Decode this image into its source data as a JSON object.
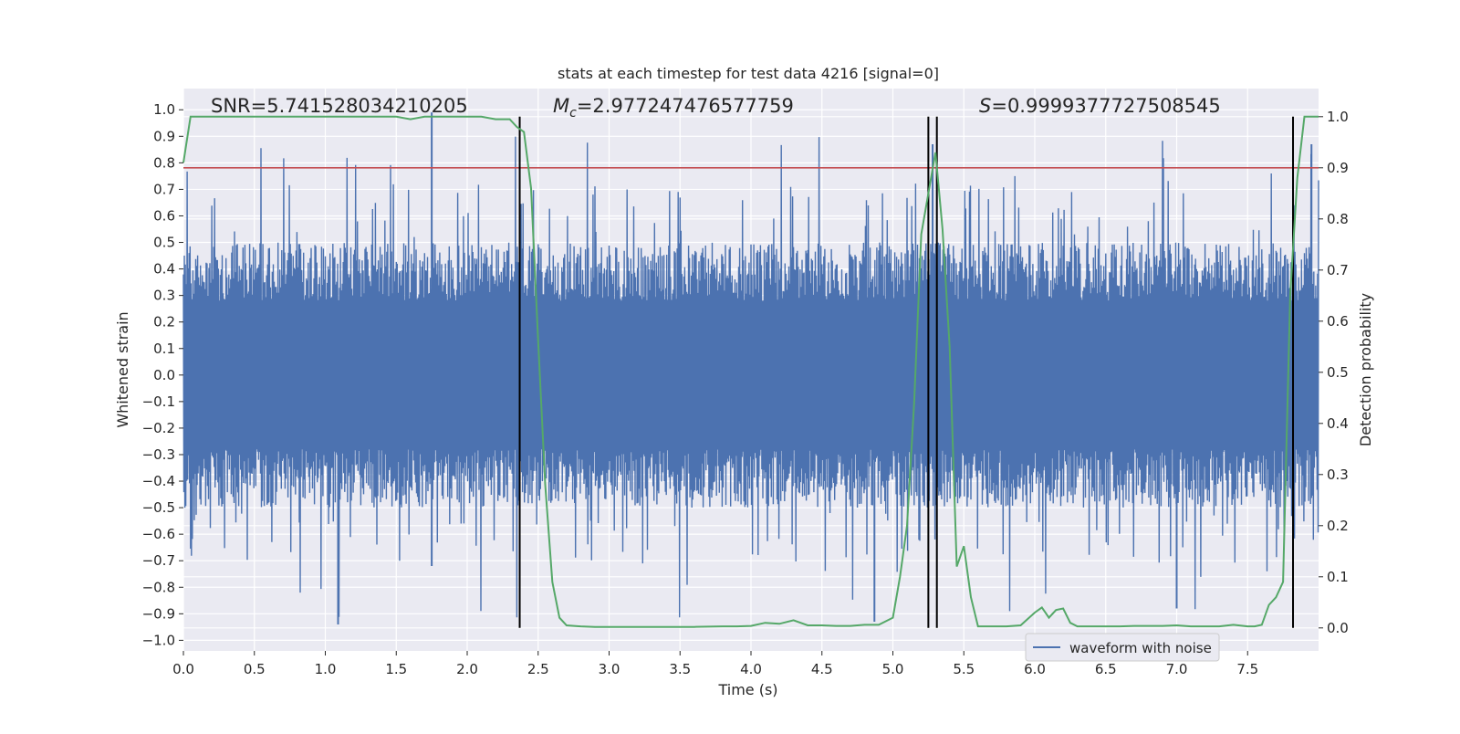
{
  "chart_data": {
    "type": "line",
    "title": "stats at each timestep for test data 4216 [signal=0]",
    "xlabel": "Time (s)",
    "ylabel": "Whitened strain",
    "y2label": "Detection probability",
    "xlim": [
      0.0,
      8.0
    ],
    "ylim": [
      -1.04,
      1.08
    ],
    "y2lim": [
      -0.045,
      1.055
    ],
    "x_ticks": [
      "0.0",
      "0.5",
      "1.0",
      "1.5",
      "2.0",
      "2.5",
      "3.0",
      "3.5",
      "4.0",
      "4.5",
      "5.0",
      "5.5",
      "6.0",
      "6.5",
      "7.0",
      "7.5"
    ],
    "y_ticks": [
      "1.0",
      "0.9",
      "0.8",
      "0.7",
      "0.6",
      "0.5",
      "0.4",
      "0.3",
      "0.2",
      "0.1",
      "0.0",
      "−0.1",
      "−0.2",
      "−0.3",
      "−0.4",
      "−0.5",
      "−0.6",
      "−0.7",
      "−0.8",
      "−0.9",
      "−1.0"
    ],
    "y2_ticks": [
      "1.0",
      "0.9",
      "0.8",
      "0.7",
      "0.6",
      "0.5",
      "0.4",
      "0.3",
      "0.2",
      "0.1",
      "0.0"
    ],
    "annotations": {
      "snr": "SNR=5.741528034210205",
      "mc_symbol": "M",
      "mc_sub": "c",
      "mc_value": "=2.977247476577759",
      "s_symbol": "S",
      "s_value": "=0.9999377727508545"
    },
    "legend": {
      "label": "waveform with noise",
      "placement": "lower-right"
    },
    "grid": true,
    "threshold": {
      "value": 0.9,
      "axis": "right",
      "color": "#c44e52"
    },
    "vertical_lines_x": [
      2.37,
      5.25,
      5.31,
      7.82
    ],
    "detection_probability": {
      "x": [
        0.0,
        0.05,
        0.1,
        0.2,
        0.4,
        0.6,
        0.8,
        1.0,
        1.2,
        1.4,
        1.5,
        1.6,
        1.7,
        1.8,
        1.9,
        2.0,
        2.1,
        2.2,
        2.3,
        2.35,
        2.4,
        2.45,
        2.5,
        2.55,
        2.6,
        2.65,
        2.7,
        2.8,
        2.9,
        3.0,
        3.2,
        3.4,
        3.6,
        3.8,
        3.9,
        4.0,
        4.1,
        4.2,
        4.3,
        4.4,
        4.5,
        4.6,
        4.7,
        4.8,
        4.9,
        5.0,
        5.05,
        5.1,
        5.15,
        5.2,
        5.25,
        5.3,
        5.35,
        5.4,
        5.45,
        5.5,
        5.55,
        5.6,
        5.7,
        5.8,
        5.9,
        6.0,
        6.05,
        6.1,
        6.15,
        6.2,
        6.25,
        6.3,
        6.4,
        6.5,
        6.6,
        6.7,
        6.8,
        6.9,
        7.0,
        7.1,
        7.2,
        7.3,
        7.4,
        7.5,
        7.55,
        7.6,
        7.65,
        7.7,
        7.75,
        7.8,
        7.85,
        7.9,
        7.95,
        8.0
      ],
      "y": [
        0.91,
        1.0,
        1.0,
        1.0,
        1.0,
        1.0,
        1.0,
        1.0,
        1.0,
        1.0,
        1.0,
        0.995,
        1.0,
        1.0,
        1.0,
        1.0,
        1.0,
        0.995,
        0.995,
        0.98,
        0.97,
        0.86,
        0.56,
        0.28,
        0.09,
        0.02,
        0.005,
        0.003,
        0.002,
        0.002,
        0.002,
        0.002,
        0.002,
        0.003,
        0.003,
        0.004,
        0.01,
        0.008,
        0.015,
        0.005,
        0.005,
        0.004,
        0.004,
        0.006,
        0.006,
        0.02,
        0.1,
        0.2,
        0.44,
        0.77,
        0.85,
        0.93,
        0.78,
        0.55,
        0.12,
        0.16,
        0.06,
        0.003,
        0.003,
        0.003,
        0.005,
        0.03,
        0.04,
        0.02,
        0.035,
        0.038,
        0.01,
        0.003,
        0.003,
        0.003,
        0.003,
        0.004,
        0.004,
        0.004,
        0.005,
        0.003,
        0.003,
        0.003,
        0.006,
        0.003,
        0.003,
        0.006,
        0.045,
        0.06,
        0.09,
        0.65,
        0.88,
        1.0,
        1.0,
        1.0
      ]
    },
    "series": [
      {
        "name": "waveform with noise",
        "values_summary": "dense noisy strain waveform; envelope approx ±0.45, peaks to 1.0 and -0.95"
      }
    ]
  },
  "colors": {
    "background": "#ffffff",
    "plot_background": "#eaeaf2",
    "grid": "#ffffff",
    "waveform": "#4c72b0",
    "probability": "#55a868",
    "threshold": "#c44e52",
    "markers": "#000000"
  }
}
